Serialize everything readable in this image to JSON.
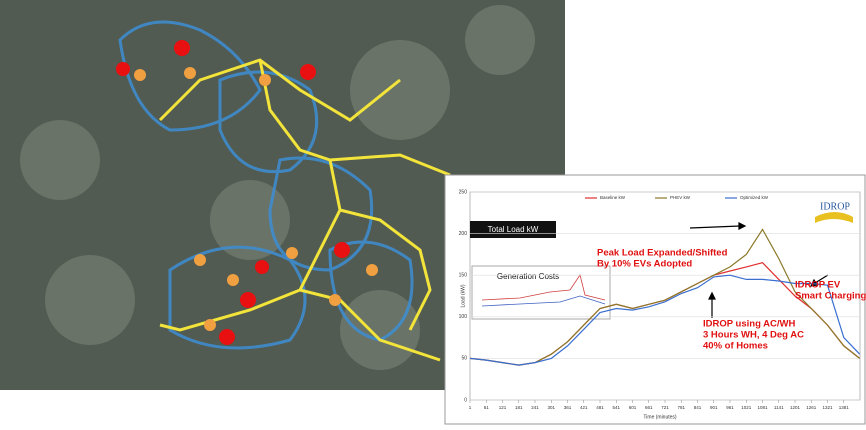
{
  "chart_data": {
    "type": "line",
    "title": "Total Load kW",
    "ylabel": "Load (kW)",
    "xlabel": "Time (minutes)",
    "logo": "IDROP",
    "inset_title": "Generation Costs",
    "annotations": [
      {
        "lines": [
          "Peak Load Expanded/Shifted",
          "By 10% EVs Adopted"
        ]
      },
      {
        "lines": [
          "IDROP  EV",
          "Smart Charging"
        ]
      },
      {
        "lines": [
          "IDROP using AC/WH",
          "3 Hours WH, 4 Deg AC",
          "40% of Homes"
        ]
      }
    ],
    "x": [
      1,
      61,
      121,
      181,
      241,
      301,
      361,
      421,
      481,
      541,
      601,
      661,
      721,
      781,
      841,
      901,
      961,
      1021,
      1081,
      1141,
      1201,
      1261,
      1321,
      1381,
      1440
    ],
    "series": [
      {
        "name": "Baseline kW",
        "color": "#e03030",
        "values": [
          50,
          48,
          45,
          42,
          45,
          55,
          70,
          90,
          110,
          115,
          110,
          115,
          120,
          130,
          140,
          150,
          155,
          160,
          165,
          145,
          125,
          110,
          90,
          65,
          50
        ]
      },
      {
        "name": "PHEV kW",
        "color": "#8b7a2a",
        "values": [
          50,
          48,
          45,
          42,
          45,
          55,
          70,
          90,
          110,
          115,
          110,
          115,
          120,
          130,
          140,
          150,
          160,
          175,
          205,
          170,
          130,
          110,
          90,
          65,
          50
        ]
      },
      {
        "name": "Optimized kW",
        "color": "#3a6fd0",
        "values": [
          50,
          48,
          45,
          42,
          45,
          50,
          65,
          85,
          105,
          110,
          108,
          112,
          118,
          128,
          135,
          148,
          150,
          145,
          145,
          143,
          140,
          140,
          138,
          75,
          55
        ]
      }
    ],
    "xlim": [
      1,
      1441
    ],
    "xticks": [
      1,
      61,
      121,
      181,
      241,
      301,
      361,
      421,
      481,
      541,
      601,
      661,
      721,
      781,
      841,
      901,
      961,
      1021,
      1081,
      1141,
      1201,
      1261,
      1321,
      1381
    ],
    "ylim": [
      0,
      250
    ],
    "yticks": [
      0,
      50,
      100,
      150,
      200,
      250
    ],
    "grid": true
  }
}
